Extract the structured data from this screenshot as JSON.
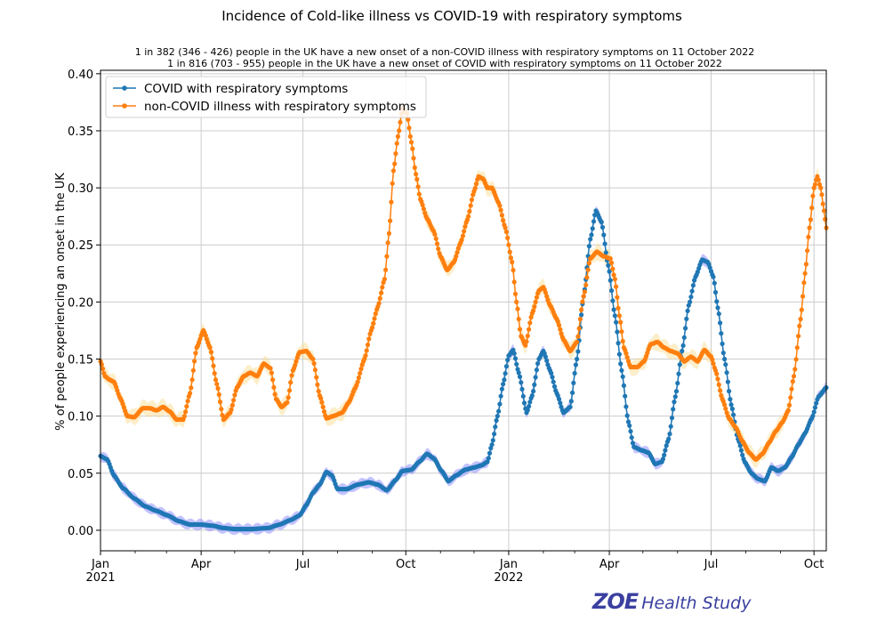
{
  "chart_data": {
    "type": "line",
    "title": "Incidence of Cold-like illness vs COVID-19 with respiratory symptoms",
    "subtitle_lines": [
      "1 in 382 (346 - 426) people in the UK have a new onset of a non-COVID illness with respiratory symptoms on 11 October 2022",
      "1 in 816 (703 - 955) people in the UK have a new onset of COVID with respiratory symptoms on 11 October 2022"
    ],
    "xlabel": "",
    "ylabel": "% of people experiencing an onset in the UK",
    "x_unit": "days since 1 Jan 2021",
    "xlim": [
      0,
      649
    ],
    "ylim": [
      -0.018,
      0.403
    ],
    "grid": true,
    "legend_position": "top-left",
    "x_ticks": [
      {
        "day": 0,
        "label": "Jan",
        "sub": "2021"
      },
      {
        "day": 90,
        "label": "Apr",
        "sub": ""
      },
      {
        "day": 181,
        "label": "Jul",
        "sub": ""
      },
      {
        "day": 273,
        "label": "Oct",
        "sub": ""
      },
      {
        "day": 365,
        "label": "Jan",
        "sub": "2022"
      },
      {
        "day": 455,
        "label": "Apr",
        "sub": ""
      },
      {
        "day": 546,
        "label": "Jul",
        "sub": ""
      },
      {
        "day": 638,
        "label": "Oct",
        "sub": ""
      }
    ],
    "x_minor_ticks": [
      31,
      59,
      120,
      151,
      212,
      243,
      304,
      334,
      396,
      424,
      485,
      516,
      577,
      608
    ],
    "y_ticks": [
      0.0,
      0.05,
      0.1,
      0.15,
      0.2,
      0.25,
      0.3,
      0.35,
      0.4
    ],
    "y_tick_labels": [
      "0.00",
      "0.05",
      "0.10",
      "0.15",
      "0.20",
      "0.25",
      "0.30",
      "0.35",
      "0.40"
    ],
    "series": [
      {
        "name": "COVID with respiratory symptoms",
        "color": "#1f77b4",
        "band_color": "#7b7bff",
        "band_halfwidth": 0.004,
        "points": [
          [
            0,
            0.065
          ],
          [
            6,
            0.062
          ],
          [
            12,
            0.048
          ],
          [
            20,
            0.037
          ],
          [
            30,
            0.028
          ],
          [
            40,
            0.021
          ],
          [
            50,
            0.017
          ],
          [
            60,
            0.013
          ],
          [
            70,
            0.008
          ],
          [
            80,
            0.005
          ],
          [
            90,
            0.005
          ],
          [
            100,
            0.004
          ],
          [
            110,
            0.002
          ],
          [
            120,
            0.001
          ],
          [
            135,
            0.001
          ],
          [
            150,
            0.002
          ],
          [
            160,
            0.005
          ],
          [
            170,
            0.009
          ],
          [
            178,
            0.013
          ],
          [
            184,
            0.022
          ],
          [
            190,
            0.033
          ],
          [
            196,
            0.04
          ],
          [
            202,
            0.051
          ],
          [
            207,
            0.048
          ],
          [
            212,
            0.036
          ],
          [
            220,
            0.036
          ],
          [
            230,
            0.04
          ],
          [
            240,
            0.042
          ],
          [
            248,
            0.04
          ],
          [
            256,
            0.035
          ],
          [
            264,
            0.044
          ],
          [
            270,
            0.052
          ],
          [
            278,
            0.053
          ],
          [
            285,
            0.06
          ],
          [
            292,
            0.067
          ],
          [
            298,
            0.063
          ],
          [
            305,
            0.052
          ],
          [
            311,
            0.043
          ],
          [
            318,
            0.048
          ],
          [
            326,
            0.053
          ],
          [
            334,
            0.055
          ],
          [
            341,
            0.057
          ],
          [
            346,
            0.06
          ],
          [
            350,
            0.075
          ],
          [
            355,
            0.1
          ],
          [
            360,
            0.128
          ],
          [
            365,
            0.153
          ],
          [
            369,
            0.158
          ],
          [
            374,
            0.138
          ],
          [
            381,
            0.103
          ],
          [
            386,
            0.118
          ],
          [
            392,
            0.15
          ],
          [
            396,
            0.157
          ],
          [
            402,
            0.14
          ],
          [
            408,
            0.12
          ],
          [
            414,
            0.103
          ],
          [
            420,
            0.108
          ],
          [
            426,
            0.15
          ],
          [
            432,
            0.205
          ],
          [
            438,
            0.255
          ],
          [
            443,
            0.28
          ],
          [
            448,
            0.27
          ],
          [
            454,
            0.232
          ],
          [
            460,
            0.188
          ],
          [
            466,
            0.14
          ],
          [
            472,
            0.095
          ],
          [
            477,
            0.073
          ],
          [
            484,
            0.07
          ],
          [
            490,
            0.068
          ],
          [
            496,
            0.058
          ],
          [
            502,
            0.06
          ],
          [
            508,
            0.08
          ],
          [
            514,
            0.117
          ],
          [
            520,
            0.157
          ],
          [
            526,
            0.197
          ],
          [
            532,
            0.222
          ],
          [
            538,
            0.237
          ],
          [
            543,
            0.235
          ],
          [
            548,
            0.222
          ],
          [
            552,
            0.195
          ],
          [
            558,
            0.15
          ],
          [
            564,
            0.11
          ],
          [
            570,
            0.08
          ],
          [
            576,
            0.06
          ],
          [
            582,
            0.05
          ],
          [
            588,
            0.045
          ],
          [
            594,
            0.043
          ],
          [
            600,
            0.055
          ],
          [
            606,
            0.052
          ],
          [
            612,
            0.055
          ],
          [
            618,
            0.064
          ],
          [
            624,
            0.075
          ],
          [
            630,
            0.085
          ],
          [
            636,
            0.098
          ],
          [
            642,
            0.117
          ],
          [
            649,
            0.125
          ]
        ]
      },
      {
        "name": "non-COVID illness with respiratory symptoms",
        "color": "#ff7f0e",
        "band_color": "#fbd98a",
        "band_halfwidth": 0.006,
        "points": [
          [
            0,
            0.148
          ],
          [
            4,
            0.135
          ],
          [
            8,
            0.132
          ],
          [
            12,
            0.13
          ],
          [
            18,
            0.115
          ],
          [
            24,
            0.1
          ],
          [
            30,
            0.099
          ],
          [
            38,
            0.107
          ],
          [
            44,
            0.107
          ],
          [
            50,
            0.105
          ],
          [
            56,
            0.108
          ],
          [
            62,
            0.104
          ],
          [
            68,
            0.097
          ],
          [
            74,
            0.097
          ],
          [
            80,
            0.12
          ],
          [
            86,
            0.16
          ],
          [
            92,
            0.175
          ],
          [
            98,
            0.16
          ],
          [
            104,
            0.128
          ],
          [
            110,
            0.097
          ],
          [
            116,
            0.103
          ],
          [
            122,
            0.125
          ],
          [
            128,
            0.135
          ],
          [
            134,
            0.138
          ],
          [
            140,
            0.135
          ],
          [
            146,
            0.146
          ],
          [
            152,
            0.142
          ],
          [
            157,
            0.115
          ],
          [
            162,
            0.108
          ],
          [
            167,
            0.112
          ],
          [
            172,
            0.14
          ],
          [
            178,
            0.156
          ],
          [
            184,
            0.157
          ],
          [
            190,
            0.15
          ],
          [
            196,
            0.118
          ],
          [
            202,
            0.098
          ],
          [
            208,
            0.1
          ],
          [
            216,
            0.103
          ],
          [
            222,
            0.112
          ],
          [
            228,
            0.125
          ],
          [
            236,
            0.15
          ],
          [
            242,
            0.175
          ],
          [
            248,
            0.196
          ],
          [
            254,
            0.22
          ],
          [
            258,
            0.26
          ],
          [
            262,
            0.315
          ],
          [
            266,
            0.345
          ],
          [
            270,
            0.37
          ],
          [
            274,
            0.365
          ],
          [
            278,
            0.34
          ],
          [
            282,
            0.312
          ],
          [
            286,
            0.29
          ],
          [
            292,
            0.273
          ],
          [
            298,
            0.262
          ],
          [
            304,
            0.24
          ],
          [
            310,
            0.228
          ],
          [
            316,
            0.235
          ],
          [
            322,
            0.252
          ],
          [
            328,
            0.272
          ],
          [
            334,
            0.297
          ],
          [
            338,
            0.31
          ],
          [
            342,
            0.308
          ],
          [
            346,
            0.3
          ],
          [
            350,
            0.3
          ],
          [
            356,
            0.287
          ],
          [
            362,
            0.265
          ],
          [
            368,
            0.235
          ],
          [
            372,
            0.2
          ],
          [
            376,
            0.17
          ],
          [
            380,
            0.162
          ],
          [
            386,
            0.19
          ],
          [
            392,
            0.21
          ],
          [
            396,
            0.213
          ],
          [
            402,
            0.197
          ],
          [
            408,
            0.185
          ],
          [
            414,
            0.167
          ],
          [
            420,
            0.157
          ],
          [
            426,
            0.165
          ],
          [
            432,
            0.205
          ],
          [
            438,
            0.238
          ],
          [
            444,
            0.244
          ],
          [
            450,
            0.24
          ],
          [
            456,
            0.238
          ],
          [
            460,
            0.22
          ],
          [
            464,
            0.188
          ],
          [
            468,
            0.16
          ],
          [
            474,
            0.143
          ],
          [
            480,
            0.143
          ],
          [
            486,
            0.148
          ],
          [
            492,
            0.163
          ],
          [
            498,
            0.165
          ],
          [
            504,
            0.16
          ],
          [
            510,
            0.157
          ],
          [
            516,
            0.155
          ],
          [
            522,
            0.148
          ],
          [
            528,
            0.152
          ],
          [
            534,
            0.148
          ],
          [
            540,
            0.158
          ],
          [
            546,
            0.152
          ],
          [
            550,
            0.14
          ],
          [
            556,
            0.115
          ],
          [
            562,
            0.098
          ],
          [
            568,
            0.09
          ],
          [
            574,
            0.078
          ],
          [
            580,
            0.068
          ],
          [
            586,
            0.062
          ],
          [
            592,
            0.067
          ],
          [
            598,
            0.077
          ],
          [
            604,
            0.087
          ],
          [
            610,
            0.095
          ],
          [
            615,
            0.105
          ],
          [
            620,
            0.135
          ],
          [
            626,
            0.185
          ],
          [
            630,
            0.225
          ],
          [
            634,
            0.265
          ],
          [
            638,
            0.3
          ],
          [
            641,
            0.31
          ],
          [
            644,
            0.3
          ],
          [
            647,
            0.28
          ],
          [
            649,
            0.265
          ]
        ]
      }
    ]
  },
  "branding": {
    "logo_mark": "ZOE",
    "logo_text": "Health Study",
    "color": "#3a3fa0"
  }
}
